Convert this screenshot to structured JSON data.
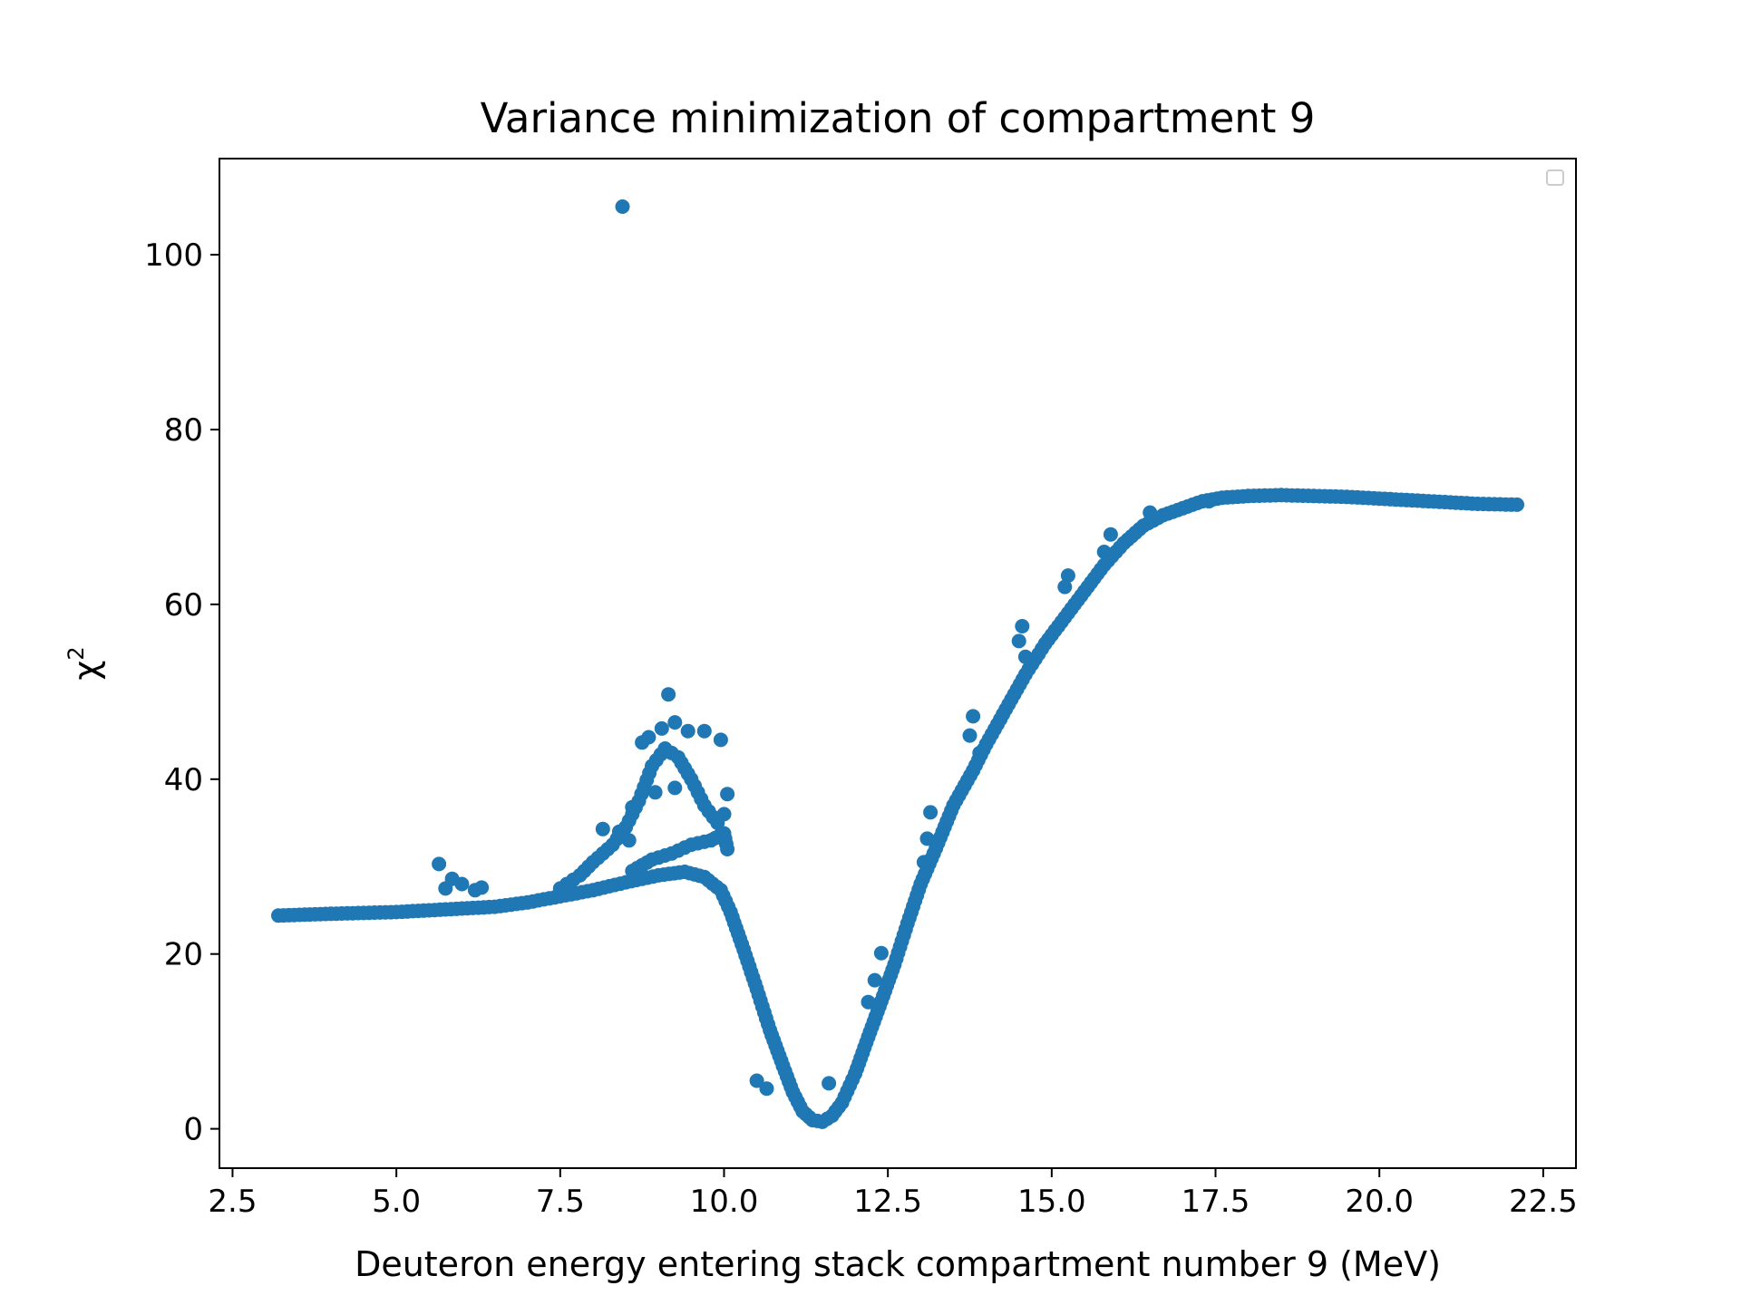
{
  "chart_data": {
    "type": "scatter",
    "title": "Variance minimization of compartment 9",
    "xlabel": "Deuteron energy entering stack compartment number 9 (MeV)",
    "ylabel_base": "χ",
    "ylabel_sup": "2",
    "xlim": [
      2.3,
      23.0
    ],
    "ylim": [
      -4.5,
      111
    ],
    "xticks": [
      2.5,
      5.0,
      7.5,
      10.0,
      12.5,
      15.0,
      17.5,
      20.0,
      22.5
    ],
    "xtick_labels": [
      "2.5",
      "5.0",
      "7.5",
      "10.0",
      "12.5",
      "15.0",
      "17.5",
      "20.0",
      "22.5"
    ],
    "yticks": [
      0,
      20,
      40,
      60,
      80,
      100
    ],
    "ytick_labels": [
      "0",
      "20",
      "40",
      "60",
      "80",
      "100"
    ],
    "grid": false,
    "legend": "top-right (empty)",
    "marker_color": "#1f77b4",
    "main_curve": [
      [
        3.2,
        24.4
      ],
      [
        3.6,
        24.5
      ],
      [
        4.0,
        24.6
      ],
      [
        4.5,
        24.7
      ],
      [
        5.0,
        24.8
      ],
      [
        5.5,
        25.0
      ],
      [
        6.0,
        25.2
      ],
      [
        6.5,
        25.4
      ],
      [
        7.0,
        25.9
      ],
      [
        7.5,
        26.6
      ],
      [
        8.0,
        27.3
      ],
      [
        8.5,
        28.2
      ],
      [
        9.0,
        29.0
      ],
      [
        9.4,
        29.4
      ],
      [
        9.7,
        28.8
      ],
      [
        9.95,
        27.3
      ],
      [
        10.1,
        24.8
      ],
      [
        10.3,
        20.5
      ],
      [
        10.5,
        16.0
      ],
      [
        10.7,
        11.3
      ],
      [
        10.9,
        7.2
      ],
      [
        11.05,
        4.2
      ],
      [
        11.2,
        2.0
      ],
      [
        11.35,
        1.0
      ],
      [
        11.5,
        0.8
      ],
      [
        11.65,
        1.5
      ],
      [
        11.8,
        3.0
      ],
      [
        12.0,
        6.3
      ],
      [
        12.2,
        10.5
      ],
      [
        12.4,
        14.6
      ],
      [
        12.6,
        18.8
      ],
      [
        12.8,
        23.5
      ],
      [
        13.0,
        28.0
      ],
      [
        13.2,
        31.5
      ],
      [
        13.5,
        37.0
      ],
      [
        13.8,
        41.0
      ],
      [
        14.0,
        44.0
      ],
      [
        14.3,
        48.0
      ],
      [
        14.6,
        52.0
      ],
      [
        14.9,
        55.5
      ],
      [
        15.2,
        58.5
      ],
      [
        15.5,
        61.5
      ],
      [
        15.8,
        64.5
      ],
      [
        16.1,
        67.0
      ],
      [
        16.4,
        69.0
      ],
      [
        16.7,
        70.2
      ],
      [
        17.0,
        71.0
      ],
      [
        17.3,
        71.8
      ],
      [
        17.6,
        72.2
      ],
      [
        18.0,
        72.4
      ],
      [
        18.5,
        72.5
      ],
      [
        19.0,
        72.4
      ],
      [
        19.5,
        72.3
      ],
      [
        20.0,
        72.1
      ],
      [
        20.5,
        71.9
      ],
      [
        21.0,
        71.7
      ],
      [
        21.5,
        71.5
      ],
      [
        22.1,
        71.4
      ]
    ],
    "upper_branch": [
      [
        7.5,
        27.5
      ],
      [
        7.8,
        29.0
      ],
      [
        8.0,
        30.5
      ],
      [
        8.3,
        32.5
      ],
      [
        8.5,
        34.5
      ],
      [
        8.7,
        37.5
      ],
      [
        8.9,
        41.5
      ],
      [
        9.1,
        43.5
      ],
      [
        9.3,
        42.5
      ],
      [
        9.5,
        40.0
      ],
      [
        9.7,
        37.0
      ],
      [
        9.9,
        35.0
      ]
    ],
    "branch_mid": [
      [
        8.6,
        29.5
      ],
      [
        8.9,
        30.8
      ],
      [
        9.2,
        31.5
      ],
      [
        9.5,
        32.5
      ],
      [
        9.8,
        33.0
      ],
      [
        10.0,
        33.8
      ],
      [
        10.05,
        32.0
      ]
    ],
    "scatter_points": [
      [
        8.45,
        105.5
      ],
      [
        5.65,
        30.3
      ],
      [
        5.75,
        27.5
      ],
      [
        5.85,
        28.6
      ],
      [
        6.0,
        28.0
      ],
      [
        6.2,
        27.3
      ],
      [
        6.3,
        27.6
      ],
      [
        8.15,
        34.3
      ],
      [
        8.4,
        34.0
      ],
      [
        8.55,
        33.0
      ],
      [
        8.6,
        36.8
      ],
      [
        8.75,
        44.2
      ],
      [
        8.85,
        44.8
      ],
      [
        9.05,
        45.8
      ],
      [
        9.15,
        49.7
      ],
      [
        9.25,
        46.5
      ],
      [
        9.45,
        45.5
      ],
      [
        9.7,
        45.5
      ],
      [
        9.95,
        44.5
      ],
      [
        8.95,
        38.5
      ],
      [
        9.25,
        39.0
      ],
      [
        10.05,
        38.3
      ],
      [
        10.0,
        36.0
      ],
      [
        10.5,
        5.5
      ],
      [
        10.65,
        4.6
      ],
      [
        11.6,
        5.2
      ],
      [
        12.3,
        17.0
      ],
      [
        12.4,
        20.1
      ],
      [
        12.2,
        14.5
      ],
      [
        13.1,
        33.2
      ],
      [
        13.15,
        36.2
      ],
      [
        13.05,
        30.5
      ],
      [
        13.8,
        47.2
      ],
      [
        13.75,
        45.0
      ],
      [
        13.9,
        43.0
      ],
      [
        14.55,
        57.5
      ],
      [
        14.5,
        55.8
      ],
      [
        14.6,
        54.0
      ],
      [
        15.25,
        63.3
      ],
      [
        15.2,
        62.0
      ],
      [
        15.9,
        68.0
      ],
      [
        15.8,
        66.0
      ],
      [
        16.5,
        70.5
      ],
      [
        17.4,
        71.8
      ]
    ]
  }
}
